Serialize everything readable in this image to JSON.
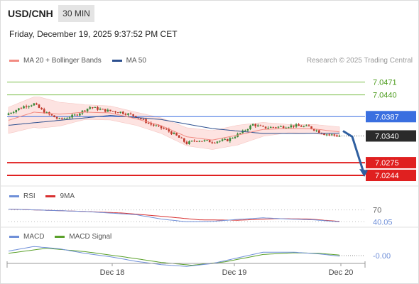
{
  "header": {
    "symbol": "USD/CNH",
    "interval": "30 MIN",
    "datetime": "Friday, December 19, 2025 9:37:52 PM CET",
    "credit": "Research © 2025 Trading Central"
  },
  "colors": {
    "ma20": "#f28b82",
    "ma50": "#2c4f8f",
    "band_fill": "#fde3e1",
    "bull": "#3a8a3a",
    "bear": "#c0392b",
    "resistance": "#7cbf4a",
    "pivot": "#3a6fe0",
    "support": "#e02020",
    "last_price": "#2a2a2a",
    "arrow": "#2f5fa0",
    "rsi": "#6f8fd8",
    "rsi_ma": "#d83030",
    "macd": "#6f8fd8",
    "macd_signal": "#5aa02a"
  },
  "chart_data": [
    {
      "type": "candlestick",
      "pane": "price",
      "legend": [
        "MA 20 + Bollinger Bands",
        "MA 50"
      ],
      "ylim": [
        7.0225,
        7.0505
      ],
      "levels": [
        {
          "label": "7.0471",
          "value": 7.0471,
          "kind": "resistance"
        },
        {
          "label": "7.0440",
          "value": 7.044,
          "kind": "resistance"
        },
        {
          "label": "7.0387",
          "value": 7.0387,
          "kind": "pivot"
        },
        {
          "label": "7.0340",
          "value": 7.034,
          "kind": "last"
        },
        {
          "label": "7.0275",
          "value": 7.0275,
          "kind": "support"
        },
        {
          "label": "7.0244",
          "value": 7.0244,
          "kind": "support"
        }
      ],
      "forecast_target": 7.0244,
      "close_anchors": [
        [
          0,
          7.0395
        ],
        [
          6,
          7.0412
        ],
        [
          10,
          7.0418
        ],
        [
          14,
          7.0398
        ],
        [
          20,
          7.038
        ],
        [
          26,
          7.039
        ],
        [
          32,
          7.041
        ],
        [
          38,
          7.0402
        ],
        [
          44,
          7.0398
        ],
        [
          50,
          7.0388
        ],
        [
          56,
          7.0368
        ],
        [
          62,
          7.0355
        ],
        [
          66,
          7.034
        ],
        [
          70,
          7.0322
        ],
        [
          74,
          7.033
        ],
        [
          80,
          7.0326
        ],
        [
          86,
          7.033
        ],
        [
          92,
          7.035
        ],
        [
          96,
          7.0368
        ],
        [
          100,
          7.036
        ],
        [
          106,
          7.0362
        ],
        [
          112,
          7.0365
        ],
        [
          118,
          7.0362
        ],
        [
          124,
          7.0345
        ],
        [
          130,
          7.034
        ]
      ],
      "ma20_anchors": [
        [
          0,
          7.0378
        ],
        [
          10,
          7.0398
        ],
        [
          20,
          7.0393
        ],
        [
          30,
          7.0398
        ],
        [
          40,
          7.0396
        ],
        [
          50,
          7.0382
        ],
        [
          60,
          7.0365
        ],
        [
          70,
          7.0338
        ],
        [
          80,
          7.033
        ],
        [
          90,
          7.0342
        ],
        [
          100,
          7.0356
        ],
        [
          110,
          7.0358
        ],
        [
          120,
          7.0357
        ],
        [
          130,
          7.035
        ]
      ],
      "ma50_anchors": [
        [
          0,
          7.0366
        ],
        [
          20,
          7.0378
        ],
        [
          40,
          7.039
        ],
        [
          60,
          7.038
        ],
        [
          80,
          7.0358
        ],
        [
          100,
          7.0346
        ],
        [
          115,
          7.0346
        ],
        [
          130,
          7.0347
        ]
      ],
      "band_width_anchors": [
        [
          0,
          0.0032
        ],
        [
          12,
          0.0038
        ],
        [
          30,
          0.0018
        ],
        [
          50,
          0.0016
        ],
        [
          70,
          0.0022
        ],
        [
          90,
          0.0024
        ],
        [
          110,
          0.001
        ],
        [
          130,
          0.0012
        ]
      ]
    },
    {
      "type": "line",
      "pane": "rsi",
      "legend": [
        "RSI",
        "9MA"
      ],
      "ylim": [
        30,
        80
      ],
      "levels": [
        {
          "label": "70",
          "value": 70
        },
        {
          "label": "40.05",
          "value": 40.05
        }
      ],
      "rsi_anchors": [
        [
          0,
          72
        ],
        [
          10,
          70
        ],
        [
          20,
          68
        ],
        [
          30,
          66
        ],
        [
          40,
          62
        ],
        [
          50,
          58
        ],
        [
          60,
          47
        ],
        [
          70,
          40
        ],
        [
          80,
          41
        ],
        [
          90,
          46
        ],
        [
          100,
          50
        ],
        [
          110,
          47
        ],
        [
          120,
          45
        ],
        [
          130,
          40
        ]
      ],
      "ma_anchors": [
        [
          0,
          72
        ],
        [
          15,
          69
        ],
        [
          30,
          66
        ],
        [
          45,
          62
        ],
        [
          60,
          54
        ],
        [
          75,
          45
        ],
        [
          90,
          44
        ],
        [
          105,
          48
        ],
        [
          118,
          47
        ],
        [
          130,
          41
        ]
      ]
    },
    {
      "type": "line",
      "pane": "macd",
      "legend": [
        "MACD",
        "MACD Signal"
      ],
      "ylim": [
        -0.0025,
        0.0025
      ],
      "levels": [
        {
          "label": "-0.00",
          "value": 0
        }
      ],
      "x_ticks": [
        "Dec 18",
        "Dec 19",
        "Dec 20"
      ],
      "macd_anchors": [
        [
          0,
          0.0008
        ],
        [
          10,
          0.0016
        ],
        [
          20,
          0.0012
        ],
        [
          30,
          0.0004
        ],
        [
          40,
          -0.0002
        ],
        [
          50,
          -0.001
        ],
        [
          60,
          -0.0016
        ],
        [
          70,
          -0.0019
        ],
        [
          80,
          -0.0014
        ],
        [
          90,
          -0.0004
        ],
        [
          100,
          0.0006
        ],
        [
          112,
          0.0006
        ],
        [
          122,
          0.0003
        ],
        [
          130,
          -0.0001
        ]
      ],
      "signal_anchors": [
        [
          0,
          0.0004
        ],
        [
          15,
          0.0013
        ],
        [
          30,
          0.0007
        ],
        [
          45,
          -0.0002
        ],
        [
          60,
          -0.0012
        ],
        [
          72,
          -0.0017
        ],
        [
          85,
          -0.0011
        ],
        [
          100,
          0.0002
        ],
        [
          112,
          0.0005
        ],
        [
          122,
          0.0004
        ],
        [
          130,
          0.0001
        ]
      ]
    }
  ]
}
